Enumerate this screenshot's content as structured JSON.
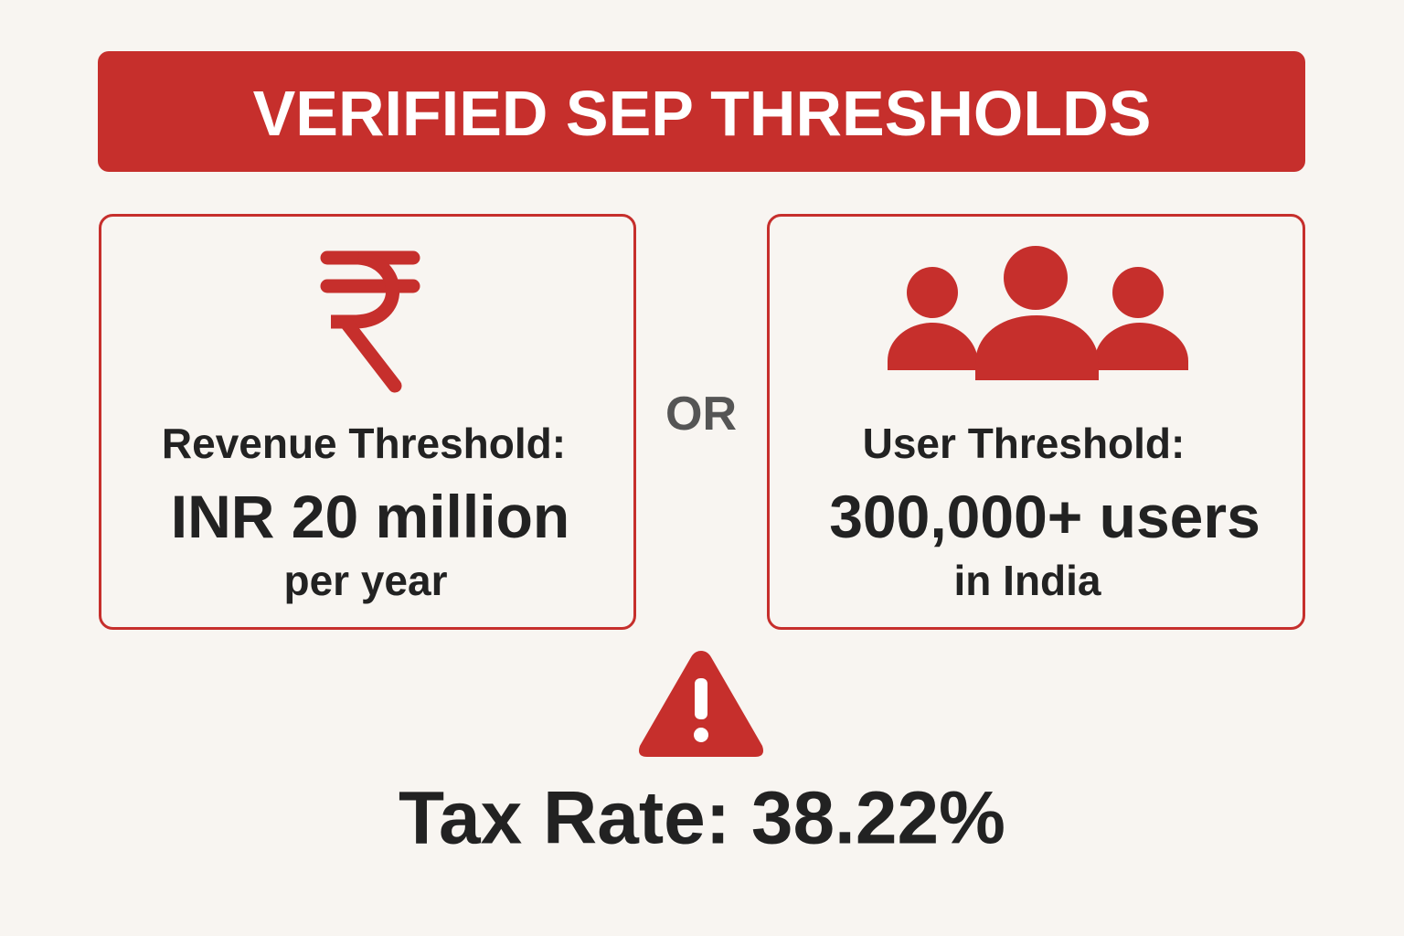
{
  "header": {
    "title": "VERIFIED SEP THRESHOLDS"
  },
  "cards": [
    {
      "label": "Revenue Threshold:",
      "value": "INR 20 million",
      "detail": "per year"
    },
    {
      "label": "User Threshold:",
      "value": "300,000+ users",
      "detail": "in India"
    }
  ],
  "separator": "OR",
  "footer": {
    "text": "Tax Rate: 38.22%"
  }
}
